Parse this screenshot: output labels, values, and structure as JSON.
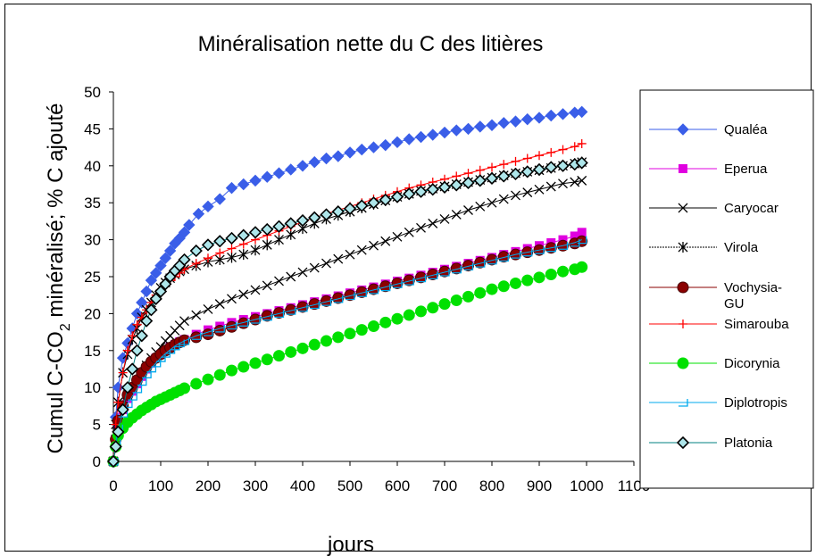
{
  "chart_data": {
    "type": "line",
    "title": "Minéralisation nette du C des litières",
    "xlabel": "jours",
    "ylabel_main": "Cumul C-CO",
    "ylabel_sub": "2",
    "ylabel_rest": " minéralisé; % C ajouté",
    "xlim": [
      0,
      1100
    ],
    "ylim": [
      0,
      50
    ],
    "x_ticks": [
      "0",
      "100",
      "200",
      "300",
      "400",
      "500",
      "600",
      "700",
      "800",
      "900",
      "1000",
      "1100"
    ],
    "y_ticks": [
      "0",
      "5",
      "10",
      "15",
      "20",
      "25",
      "30",
      "35",
      "40",
      "45",
      "50"
    ],
    "legend_position": "right",
    "grid": false,
    "series": [
      {
        "name": "Qualéa",
        "color": "#3a5ee8",
        "marker": "diamond",
        "x": [
          0,
          5,
          10,
          20,
          30,
          40,
          50,
          60,
          70,
          80,
          90,
          100,
          110,
          120,
          130,
          140,
          150,
          160,
          180,
          200,
          225,
          250,
          275,
          300,
          325,
          350,
          375,
          400,
          425,
          450,
          475,
          500,
          525,
          550,
          575,
          600,
          625,
          650,
          675,
          700,
          725,
          750,
          775,
          800,
          825,
          850,
          875,
          900,
          925,
          950,
          975,
          990
        ],
        "y": [
          0,
          6,
          10,
          14,
          16,
          18,
          20,
          21.5,
          23,
          24.5,
          25.5,
          26.5,
          27.5,
          28.5,
          29.5,
          30.2,
          31,
          32,
          33.5,
          34.5,
          35.5,
          37,
          37.5,
          38,
          38.5,
          39,
          39.5,
          40,
          40.5,
          41,
          41.3,
          41.8,
          42.2,
          42.5,
          42.8,
          43.2,
          43.6,
          43.9,
          44.2,
          44.5,
          44.8,
          45,
          45.3,
          45.5,
          45.8,
          46,
          46.3,
          46.5,
          46.8,
          47,
          47.2,
          47.3
        ]
      },
      {
        "name": "Eperua",
        "color": "#e000e0",
        "marker": "square",
        "x": [
          0,
          5,
          10,
          20,
          30,
          40,
          50,
          60,
          70,
          80,
          90,
          100,
          110,
          120,
          130,
          140,
          150,
          175,
          200,
          225,
          250,
          275,
          300,
          325,
          350,
          375,
          400,
          425,
          450,
          475,
          500,
          525,
          550,
          575,
          600,
          625,
          650,
          675,
          700,
          725,
          750,
          775,
          800,
          825,
          850,
          875,
          900,
          925,
          950,
          975,
          990
        ],
        "y": [
          0,
          3,
          5,
          7,
          8.5,
          9.5,
          10.5,
          11.5,
          12.5,
          13.3,
          14,
          14.5,
          15,
          15.5,
          15.8,
          16.2,
          16.5,
          17.2,
          17.8,
          18.3,
          18.8,
          19.2,
          19.6,
          20,
          20.4,
          20.8,
          21.2,
          21.6,
          22,
          22.4,
          22.8,
          23.2,
          23.6,
          24,
          24.4,
          24.8,
          25.2,
          25.6,
          26,
          26.4,
          26.8,
          27.2,
          27.6,
          28,
          28.4,
          28.8,
          29.2,
          29.6,
          30,
          30.5,
          31
        ]
      },
      {
        "name": "Caryocar",
        "color": "#000000",
        "marker": "x",
        "x": [
          0,
          5,
          10,
          20,
          30,
          40,
          50,
          60,
          70,
          80,
          90,
          100,
          110,
          120,
          130,
          140,
          150,
          175,
          200,
          225,
          250,
          275,
          300,
          325,
          350,
          375,
          400,
          425,
          450,
          475,
          500,
          525,
          550,
          575,
          600,
          625,
          650,
          675,
          700,
          725,
          750,
          775,
          800,
          825,
          850,
          875,
          900,
          925,
          950,
          975,
          990
        ],
        "y": [
          0,
          3,
          5,
          7.5,
          9,
          10,
          11,
          12,
          13,
          14,
          14.8,
          15.5,
          16.3,
          17,
          17.7,
          18.4,
          19,
          19.8,
          20.6,
          21.3,
          22,
          22.6,
          23.2,
          23.8,
          24.4,
          25,
          25.6,
          26.2,
          26.8,
          27.4,
          28,
          28.6,
          29.2,
          29.8,
          30.4,
          31,
          31.6,
          32.2,
          32.8,
          33.4,
          34,
          34.5,
          35,
          35.5,
          36,
          36.4,
          36.8,
          37.2,
          37.6,
          37.8,
          38
        ]
      },
      {
        "name": "Virola",
        "color": "#000000",
        "marker": "asterisk",
        "x": [
          0,
          5,
          10,
          20,
          30,
          40,
          50,
          60,
          70,
          80,
          90,
          100,
          110,
          120,
          130,
          140,
          150,
          175,
          200,
          225,
          250,
          275,
          300,
          325,
          350,
          375,
          400,
          425,
          450,
          475,
          500,
          525,
          550,
          575,
          600,
          625,
          650,
          675,
          700,
          725,
          750,
          775,
          800,
          825,
          850,
          875,
          900,
          925,
          950,
          975,
          990
        ],
        "y": [
          0,
          5,
          8,
          12,
          14.5,
          16.5,
          18,
          19.5,
          20.5,
          21.5,
          22.5,
          23.5,
          24.2,
          24.8,
          25.3,
          25.7,
          26,
          26.5,
          27,
          27.3,
          27.6,
          28,
          28.6,
          29.3,
          30,
          30.7,
          31.5,
          32.2,
          32.8,
          33.3,
          33.8,
          34.3,
          34.8,
          35.3,
          35.8,
          36.2,
          36.6,
          36.9,
          37.2,
          37.5,
          37.8,
          38.1,
          38.4,
          38.7,
          39,
          39.2,
          39.4,
          39.7,
          40,
          40.3,
          40.5
        ]
      },
      {
        "name": "Vochysia-GU",
        "color": "#8b0000",
        "marker": "circle",
        "x": [
          0,
          5,
          10,
          20,
          30,
          40,
          50,
          60,
          70,
          80,
          90,
          100,
          110,
          120,
          130,
          140,
          150,
          175,
          200,
          225,
          250,
          275,
          300,
          325,
          350,
          375,
          400,
          425,
          450,
          475,
          500,
          525,
          550,
          575,
          600,
          625,
          650,
          675,
          700,
          725,
          750,
          775,
          800,
          825,
          850,
          875,
          900,
          925,
          950,
          975,
          990
        ],
        "y": [
          0,
          3,
          5.5,
          7.5,
          9,
          10,
          11,
          12,
          12.8,
          13.5,
          14,
          14.5,
          15,
          15.4,
          15.8,
          16.1,
          16.4,
          16.8,
          17.2,
          17.7,
          18.2,
          18.7,
          19.2,
          19.7,
          20.1,
          20.5,
          20.9,
          21.3,
          21.7,
          22.1,
          22.5,
          22.9,
          23.3,
          23.7,
          24.1,
          24.5,
          24.9,
          25.3,
          25.7,
          26.1,
          26.5,
          26.9,
          27.3,
          27.7,
          28,
          28.3,
          28.6,
          28.9,
          29.2,
          29.5,
          29.8
        ]
      },
      {
        "name": "Simarouba",
        "color": "#ff0000",
        "marker": "plus",
        "x": [
          0,
          5,
          10,
          20,
          30,
          40,
          50,
          60,
          70,
          80,
          90,
          100,
          110,
          120,
          130,
          140,
          150,
          175,
          200,
          225,
          250,
          275,
          300,
          325,
          350,
          375,
          400,
          425,
          450,
          475,
          500,
          525,
          550,
          575,
          600,
          625,
          650,
          675,
          700,
          725,
          750,
          775,
          800,
          825,
          850,
          875,
          900,
          925,
          950,
          975,
          990
        ],
        "y": [
          0,
          5,
          8,
          12,
          15,
          17,
          18.5,
          19.5,
          20.5,
          21.5,
          22.5,
          23.2,
          23.8,
          24.5,
          25,
          25.5,
          26,
          26.8,
          27.5,
          28.2,
          28.8,
          29.4,
          30,
          30.6,
          31.2,
          31.8,
          32.4,
          33,
          33.5,
          34,
          34.5,
          35,
          35.5,
          36,
          36.5,
          37,
          37.4,
          37.8,
          38.2,
          38.6,
          39,
          39.4,
          39.8,
          40.2,
          40.6,
          41,
          41.4,
          41.8,
          42.2,
          42.6,
          43
        ]
      },
      {
        "name": "Dicorynia",
        "color": "#00e000",
        "marker": "circle",
        "x": [
          0,
          5,
          10,
          20,
          30,
          40,
          50,
          60,
          70,
          80,
          90,
          100,
          110,
          120,
          130,
          140,
          150,
          175,
          200,
          225,
          250,
          275,
          300,
          325,
          350,
          375,
          400,
          425,
          450,
          475,
          500,
          525,
          550,
          575,
          600,
          625,
          650,
          675,
          700,
          725,
          750,
          775,
          800,
          825,
          850,
          875,
          900,
          925,
          950,
          975,
          990
        ],
        "y": [
          0,
          2,
          3.5,
          4.5,
          5.3,
          5.9,
          6.4,
          6.9,
          7.3,
          7.7,
          8.1,
          8.4,
          8.7,
          9,
          9.3,
          9.6,
          9.9,
          10.5,
          11.1,
          11.7,
          12.3,
          12.8,
          13.3,
          13.8,
          14.3,
          14.8,
          15.3,
          15.8,
          16.3,
          16.8,
          17.3,
          17.8,
          18.3,
          18.8,
          19.3,
          19.8,
          20.3,
          20.8,
          21.3,
          21.8,
          22.3,
          22.8,
          23.3,
          23.7,
          24.1,
          24.5,
          24.9,
          25.3,
          25.7,
          26,
          26.3
        ]
      },
      {
        "name": "Diplotropis",
        "color": "#00aaee",
        "marker": "tri",
        "x": [
          0,
          5,
          10,
          20,
          30,
          40,
          50,
          60,
          70,
          80,
          90,
          100,
          110,
          120,
          130,
          140,
          150,
          175,
          200,
          225,
          250,
          275,
          300,
          325,
          350,
          375,
          400,
          425,
          450,
          475,
          500,
          525,
          550,
          575,
          600,
          625,
          650,
          675,
          700,
          725,
          750,
          775,
          800,
          825,
          850,
          875,
          900,
          925,
          950,
          975,
          990
        ],
        "y": [
          0,
          2.5,
          4.5,
          6.5,
          7.8,
          8.8,
          9.8,
          10.8,
          11.8,
          12.6,
          13.3,
          14,
          14.6,
          15.1,
          15.6,
          16,
          16.3,
          17,
          17.5,
          18,
          18.4,
          18.8,
          19.2,
          19.6,
          20,
          20.4,
          20.8,
          21.2,
          21.6,
          22,
          22.4,
          22.8,
          23.2,
          23.6,
          24,
          24.4,
          24.8,
          25.2,
          25.6,
          26,
          26.4,
          26.8,
          27.2,
          27.6,
          28,
          28.3,
          28.6,
          28.9,
          29.2,
          29.6,
          30
        ]
      },
      {
        "name": "Platonia",
        "color": "#000000",
        "fill": "#aee6ea",
        "marker": "diamond",
        "x": [
          0,
          5,
          10,
          20,
          30,
          40,
          50,
          60,
          70,
          80,
          90,
          100,
          110,
          120,
          130,
          140,
          150,
          175,
          200,
          225,
          250,
          275,
          300,
          325,
          350,
          375,
          400,
          425,
          450,
          475,
          500,
          525,
          550,
          575,
          600,
          625,
          650,
          675,
          700,
          725,
          750,
          775,
          800,
          825,
          850,
          875,
          900,
          925,
          950,
          975,
          990
        ],
        "y": [
          0,
          2,
          4,
          7,
          10,
          12.5,
          15,
          17,
          19,
          20.5,
          22,
          23,
          24,
          25,
          25.8,
          26.5,
          27.3,
          28.5,
          29.3,
          29.8,
          30.2,
          30.6,
          31,
          31.4,
          31.8,
          32.2,
          32.6,
          33,
          33.4,
          33.8,
          34.2,
          34.6,
          35,
          35.4,
          35.8,
          36.2,
          36.5,
          36.8,
          37.1,
          37.4,
          37.7,
          38,
          38.3,
          38.6,
          38.9,
          39.2,
          39.5,
          39.8,
          40,
          40.2,
          40.4
        ]
      }
    ]
  }
}
